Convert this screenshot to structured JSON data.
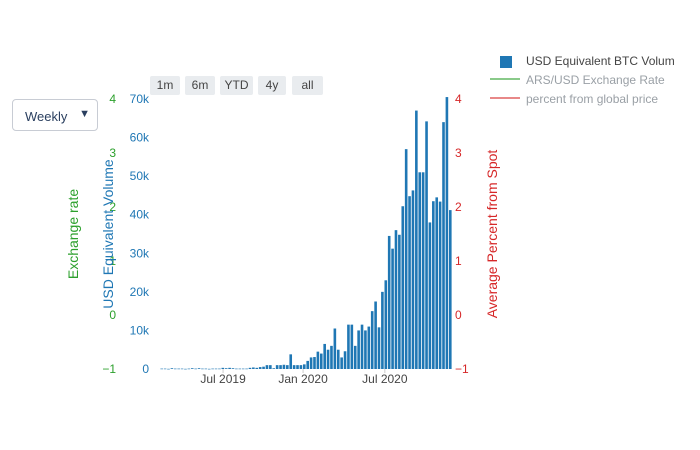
{
  "controls": {
    "dropdown_value": "Weekly",
    "range_buttons": [
      "1m",
      "6m",
      "YTD",
      "4y",
      "all"
    ]
  },
  "legend": [
    {
      "label": "USD Equivalent BTC Volum",
      "color": "#1f77b4",
      "symbol": "square",
      "visible": true
    },
    {
      "label": "ARS/USD Exchange Rate",
      "color": "#2ca02c",
      "symbol": "line",
      "visible": false
    },
    {
      "label": "percent from global price",
      "color": "#d62728",
      "symbol": "line",
      "visible": false
    }
  ],
  "chart_data": {
    "type": "bar",
    "title": "",
    "x_ticks": [
      "Jul 2019",
      "Jan 2020",
      "Jul 2020"
    ],
    "y_volume": {
      "label": "USD Equivalent Volume",
      "ticks": [
        "0",
        "10k",
        "20k",
        "30k",
        "40k",
        "50k",
        "60k",
        "70k"
      ],
      "range": [
        0,
        70000
      ],
      "color": "#1f77b4"
    },
    "y_exchange": {
      "label": "Exchange rate",
      "ticks": [
        "−1",
        "0",
        "1",
        "2",
        "3",
        "4"
      ],
      "range": [
        -1,
        4
      ],
      "color": "#2ca02c"
    },
    "y_percent": {
      "label": "Average Percent from Spot",
      "ticks": [
        "−1",
        "0",
        "1",
        "2",
        "3",
        "4"
      ],
      "range": [
        -1,
        4
      ],
      "color": "#d62728"
    },
    "series": [
      {
        "name": "USD Equivalent BTC Volum",
        "color": "#1f77b4",
        "values": [
          100,
          100,
          50,
          200,
          100,
          100,
          100,
          50,
          100,
          200,
          100,
          200,
          100,
          100,
          50,
          100,
          100,
          100,
          300,
          200,
          300,
          200,
          100,
          100,
          100,
          100,
          300,
          400,
          300,
          500,
          600,
          1000,
          1000,
          200,
          1000,
          1000,
          1100,
          1000,
          3800,
          1000,
          1000,
          1000,
          1200,
          2100,
          3000,
          3100,
          4500,
          4000,
          6500,
          5000,
          6000,
          10500,
          5000,
          3000,
          4600,
          11500,
          11500,
          6000,
          10000,
          11500,
          10000,
          11000,
          15000,
          17500,
          10800,
          20000,
          23000,
          34500,
          31200,
          36000,
          34800,
          42200,
          57000,
          44800,
          46300,
          67000,
          51000,
          51000,
          64200,
          38000,
          43500,
          44500,
          43400,
          64000,
          70500,
          41200
        ]
      }
    ]
  }
}
